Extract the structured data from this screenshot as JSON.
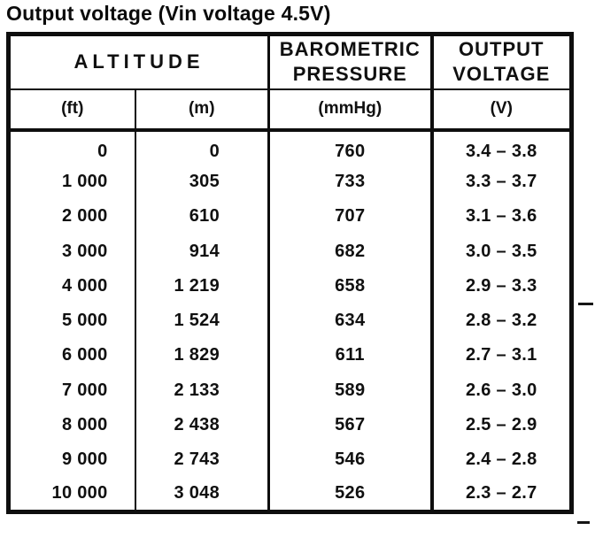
{
  "page": {
    "title": "Output voltage (Vin voltage 4.5V)"
  },
  "table": {
    "header": {
      "altitude": "ALTITUDE",
      "barometric_line1": "BAROMETRIC",
      "barometric_line2": "PRESSURE",
      "output_line1": "OUTPUT",
      "output_line2": "VOLTAGE",
      "unit_ft": "(ft)",
      "unit_m": "(m)",
      "unit_mmhg": "(mmHg)",
      "unit_v": "(V)"
    },
    "rows": [
      {
        "ft": "0",
        "m": "0",
        "mmhg": "760",
        "v": "3.4 – 3.8"
      },
      {
        "ft": "1 000",
        "m": "305",
        "mmhg": "733",
        "v": "3.3 – 3.7"
      },
      {
        "ft": "2 000",
        "m": "610",
        "mmhg": "707",
        "v": "3.1 – 3.6"
      },
      {
        "ft": "3 000",
        "m": "914",
        "mmhg": "682",
        "v": "3.0 – 3.5"
      },
      {
        "ft": "4 000",
        "m": "1 219",
        "mmhg": "658",
        "v": "2.9 – 3.3"
      },
      {
        "ft": "5 000",
        "m": "1 524",
        "mmhg": "634",
        "v": "2.8 – 3.2"
      },
      {
        "ft": "6 000",
        "m": "1 829",
        "mmhg": "611",
        "v": "2.7 – 3.1"
      },
      {
        "ft": "7 000",
        "m": "2 133",
        "mmhg": "589",
        "v": "2.6 – 3.0"
      },
      {
        "ft": "8 000",
        "m": "2 438",
        "mmhg": "567",
        "v": "2.5 – 2.9"
      },
      {
        "ft": "9 000",
        "m": "2 743",
        "mmhg": "546",
        "v": "2.4 – 2.8"
      },
      {
        "ft": "10 000",
        "m": "3 048",
        "mmhg": "526",
        "v": "2.3 – 2.7"
      }
    ]
  }
}
